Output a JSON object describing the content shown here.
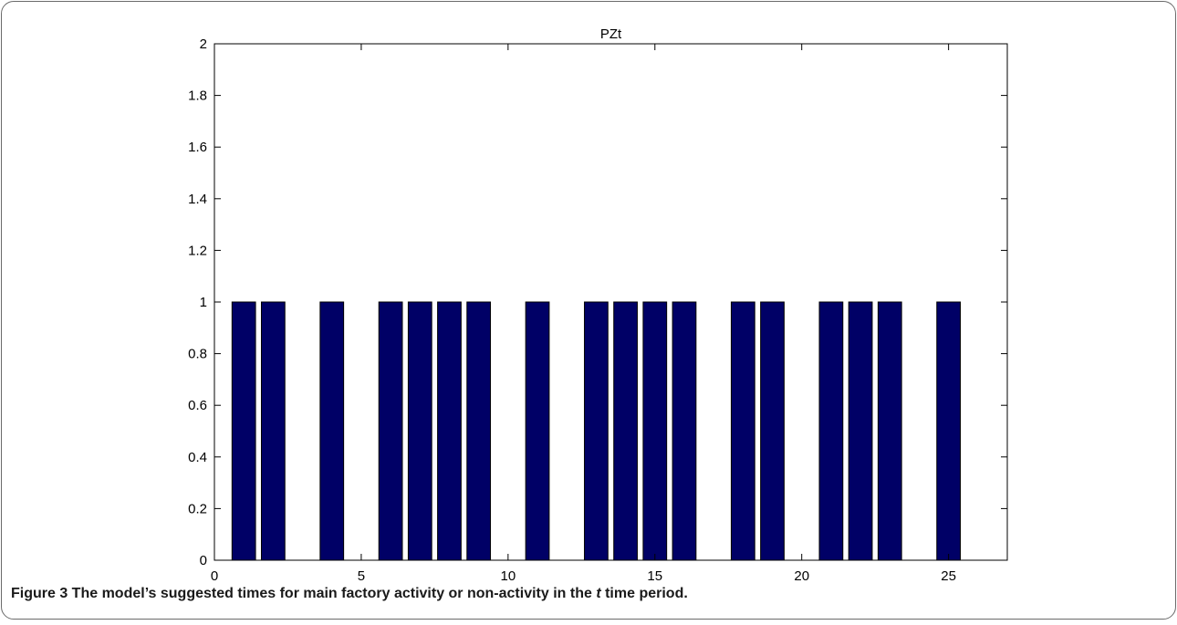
{
  "chart_data": {
    "type": "bar",
    "title": "PZt",
    "xlabel": "",
    "ylabel": "",
    "xlim": [
      0,
      27
    ],
    "ylim": [
      0,
      2
    ],
    "xticks": [
      0,
      5,
      10,
      15,
      20,
      25
    ],
    "yticks": [
      0,
      0.2,
      0.4,
      0.6,
      0.8,
      1,
      1.2,
      1.4,
      1.6,
      1.8,
      2
    ],
    "ytick_labels": [
      "0",
      "0.2",
      "0.4",
      "0.6",
      "0.8",
      "1",
      "1.2",
      "1.4",
      "1.6",
      "1.8",
      "2"
    ],
    "grid": false,
    "bar_color": "#000066",
    "x": [
      1,
      2,
      3,
      4,
      5,
      6,
      7,
      8,
      9,
      10,
      11,
      12,
      13,
      14,
      15,
      16,
      17,
      18,
      19,
      20,
      21,
      22,
      23,
      24,
      25
    ],
    "values": [
      1,
      1,
      0,
      1,
      0,
      1,
      1,
      1,
      1,
      0,
      1,
      0,
      1,
      1,
      1,
      1,
      0,
      1,
      1,
      0,
      1,
      1,
      1,
      0,
      1
    ]
  },
  "caption": {
    "label": "Figure 3",
    "text_before": " The model’s suggested times for main factory activity or non-activity in the ",
    "italic": "t",
    "text_after": " time period."
  }
}
